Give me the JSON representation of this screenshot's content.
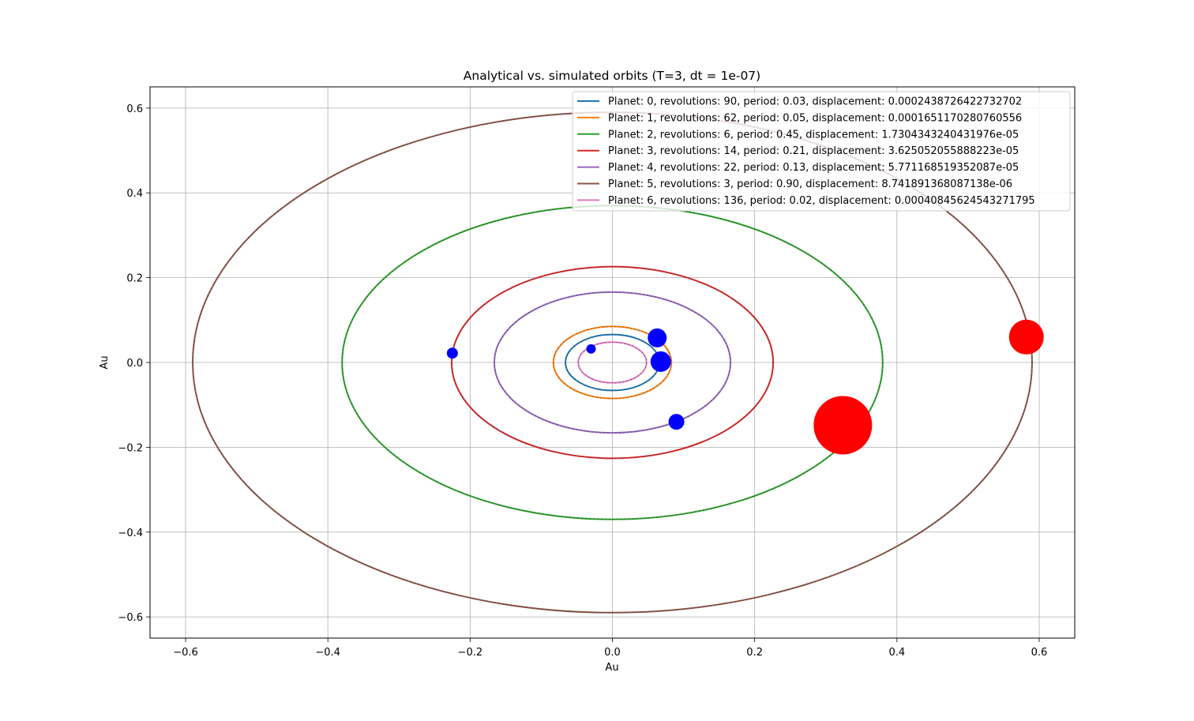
{
  "chart_data": {
    "type": "line",
    "title": "Analytical vs. simulated orbits (T=3, dt = 1e-07)",
    "xlabel": "Au",
    "ylabel": "Au",
    "xlim": [
      -0.65,
      0.65
    ],
    "ylim": [
      -0.65,
      0.65
    ],
    "x_ticks": [
      -0.6,
      -0.4,
      -0.2,
      0.0,
      0.2,
      0.4,
      0.6
    ],
    "y_ticks": [
      -0.6,
      -0.4,
      -0.2,
      0.0,
      0.2,
      0.4,
      0.6
    ],
    "x_tick_labels": [
      "−0.6",
      "−0.4",
      "−0.2",
      "0.0",
      "0.2",
      "0.4",
      "0.6"
    ],
    "y_tick_labels": [
      "−0.6",
      "−0.4",
      "−0.2",
      "0.0",
      "0.2",
      "0.4",
      "0.6"
    ],
    "grid": true,
    "legend_position": "top-right",
    "series": [
      {
        "name": "Planet: 0, revolutions: 90, period: 0.03, displacement: 0.0002438726422732702",
        "color": "#1f77b4",
        "a": 0.066,
        "b": 0.066
      },
      {
        "name": "Planet: 1, revolutions: 62, period: 0.05, displacement: 0.0001651170280760556",
        "color": "#ff7f0e",
        "a": 0.083,
        "b": 0.085
      },
      {
        "name": "Planet: 2, revolutions: 6, period: 0.45, displacement: 1.7304343240431976e-05",
        "color": "#2ca02c",
        "a": 0.38,
        "b": 0.37
      },
      {
        "name": "Planet: 3, revolutions: 14, period: 0.21, displacement: 3.625052055888223e-05",
        "color": "#d62728",
        "a": 0.226,
        "b": 0.226
      },
      {
        "name": "Planet: 4, revolutions: 22, period: 0.13, displacement: 5.771168519352087e-05",
        "color": "#9467bd",
        "a": 0.166,
        "b": 0.166
      },
      {
        "name": "Planet: 5, revolutions: 3, period: 0.90, displacement: 8.741891368087138e-06",
        "color": "#8c564b",
        "a": 0.59,
        "b": 0.59
      },
      {
        "name": "Planet: 6, revolutions: 136, period: 0.02, displacement: 0.00040845624543271795",
        "color": "#e377c2",
        "a": 0.048,
        "b": 0.048
      }
    ],
    "planet_markers": [
      {
        "x": 0.063,
        "y": 0.058,
        "color": "#0000ff",
        "size": 12
      },
      {
        "x": 0.068,
        "y": 0.002,
        "color": "#0000ff",
        "size": 13
      },
      {
        "x": -0.03,
        "y": 0.032,
        "color": "#0000ff",
        "size": 6
      },
      {
        "x": -0.225,
        "y": 0.022,
        "color": "#0000ff",
        "size": 7
      },
      {
        "x": 0.09,
        "y": -0.14,
        "color": "#0000ff",
        "size": 10
      },
      {
        "x": 0.324,
        "y": -0.148,
        "color": "#ff0000",
        "size": 37
      },
      {
        "x": 0.582,
        "y": 0.06,
        "color": "#ff0000",
        "size": 22
      }
    ]
  }
}
